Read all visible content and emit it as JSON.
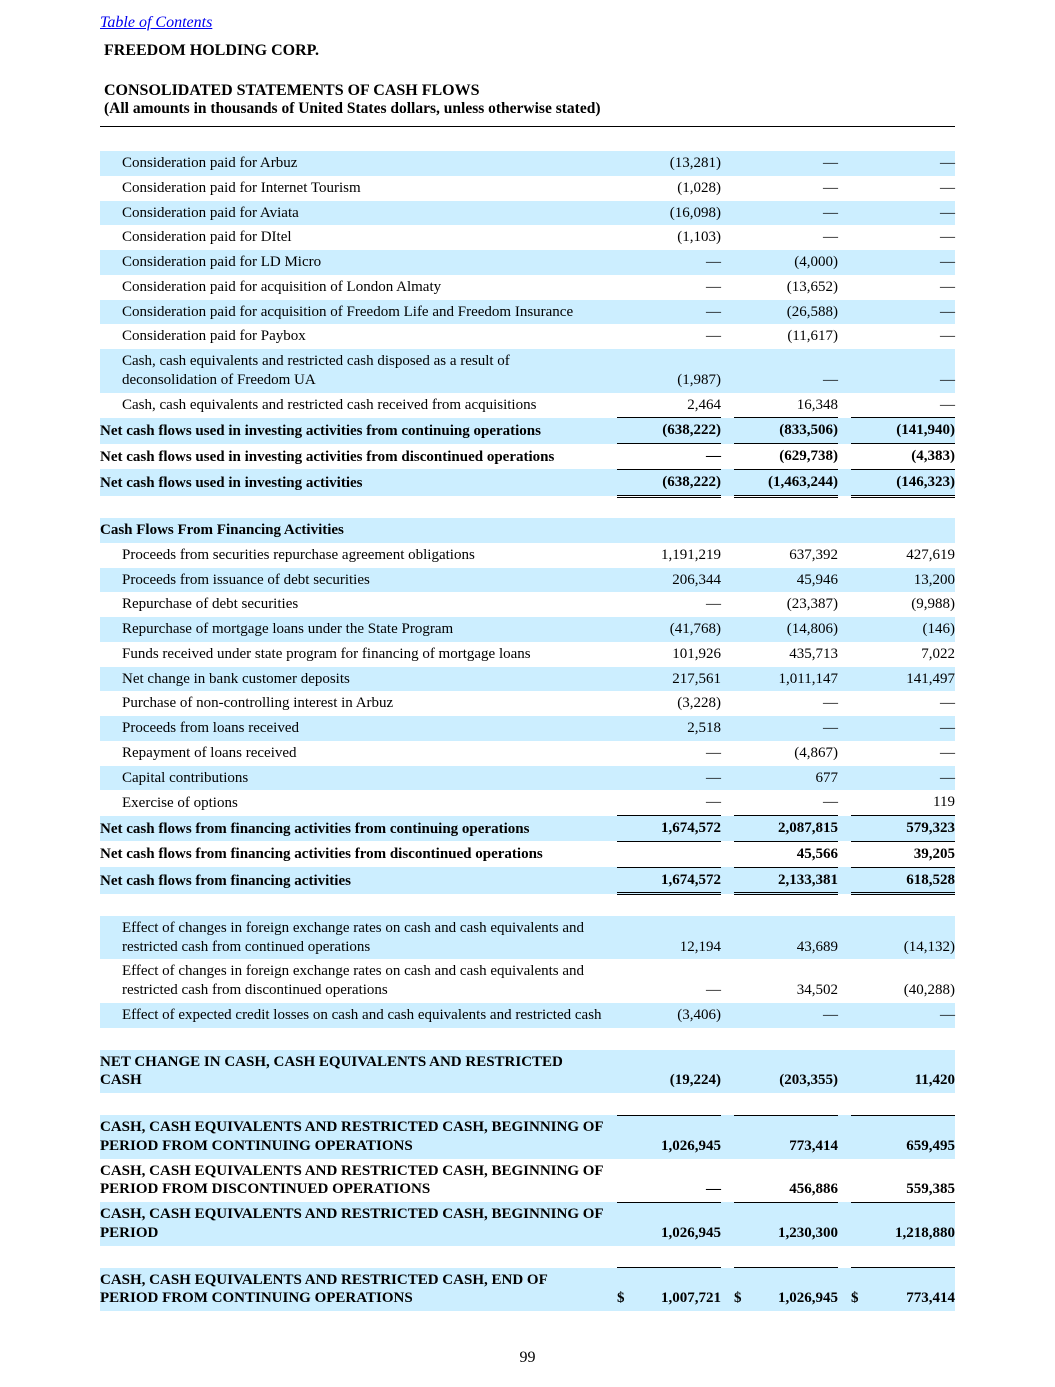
{
  "page": {
    "toc_link": "Table of Contents",
    "company": "FREEDOM HOLDING CORP.",
    "title": "CONSOLIDATED STATEMENTS OF CASH FLOWS",
    "subtitle": "(All amounts in thousands of United States dollars, unless otherwise stated)",
    "page_number": "99"
  },
  "colors": {
    "row_shade": "#cceeff",
    "link_blue": "#0000ee",
    "text": "#000000"
  },
  "table": {
    "rows": [
      {
        "type": "item",
        "label": "Consideration paid for Arbuz",
        "values": [
          "(13,281)",
          "—",
          "—"
        ],
        "shaded": true
      },
      {
        "type": "item",
        "label": "Consideration paid for Internet Tourism",
        "values": [
          "(1,028)",
          "—",
          "—"
        ],
        "shaded": false
      },
      {
        "type": "item",
        "label": "Consideration paid for Aviata",
        "values": [
          "(16,098)",
          "—",
          "—"
        ],
        "shaded": true
      },
      {
        "type": "item",
        "label": "Consideration paid for DItel",
        "values": [
          "(1,103)",
          "—",
          "—"
        ],
        "shaded": false
      },
      {
        "type": "item",
        "label": "Consideration paid for LD Micro",
        "values": [
          "—",
          "(4,000)",
          "—"
        ],
        "shaded": true
      },
      {
        "type": "item",
        "label": "Consideration paid for acquisition of London Almaty",
        "values": [
          "—",
          "(13,652)",
          "—"
        ],
        "shaded": false
      },
      {
        "type": "item",
        "label": "Consideration paid for acquisition of Freedom Life and Freedom Insurance",
        "values": [
          "—",
          "(26,588)",
          "—"
        ],
        "shaded": true
      },
      {
        "type": "item",
        "label": "Consideration paid for Paybox",
        "values": [
          "—",
          "(11,617)",
          "—"
        ],
        "shaded": false
      },
      {
        "type": "item",
        "label": "Cash, cash equivalents and restricted cash disposed as a result of deconsolidation of Freedom UA",
        "values": [
          "(1,987)",
          "—",
          "—"
        ],
        "shaded": true
      },
      {
        "type": "item",
        "label": "Cash, cash equivalents and restricted cash received from acquisitions",
        "values": [
          "2,464",
          "16,348",
          "—"
        ],
        "shaded": false
      },
      {
        "type": "total",
        "label": "Net cash flows used in investing activities from continuing operations",
        "values": [
          "(638,222)",
          "(833,506)",
          "(141,940)"
        ],
        "shaded": true,
        "top_border": true
      },
      {
        "type": "total",
        "label": "Net cash flows used in investing activities from discontinued operations",
        "values": [
          "—",
          "(629,738)",
          "(4,383)"
        ],
        "shaded": false,
        "top_border": true
      },
      {
        "type": "total",
        "label": "Net cash flows used in investing activities",
        "values": [
          "(638,222)",
          "(1,463,244)",
          "(146,323)"
        ],
        "shaded": true,
        "top_border": true,
        "double_bottom": true
      },
      {
        "type": "spacer"
      },
      {
        "type": "section",
        "label": "Cash Flows From Financing Activities",
        "values": [
          "",
          "",
          ""
        ],
        "shaded": true
      },
      {
        "type": "item",
        "label": "Proceeds from securities repurchase agreement obligations",
        "values": [
          "1,191,219",
          "637,392",
          "427,619"
        ],
        "shaded": false
      },
      {
        "type": "item",
        "label": "Proceeds from issuance of debt securities",
        "values": [
          "206,344",
          "45,946",
          "13,200"
        ],
        "shaded": true
      },
      {
        "type": "item",
        "label": "Repurchase of debt securities",
        "values": [
          "—",
          "(23,387)",
          "(9,988)"
        ],
        "shaded": false
      },
      {
        "type": "item",
        "label": "Repurchase of mortgage loans under the State Program",
        "values": [
          "(41,768)",
          "(14,806)",
          "(146)"
        ],
        "shaded": true
      },
      {
        "type": "item",
        "label": "Funds received under state program for financing of mortgage loans",
        "values": [
          "101,926",
          "435,713",
          "7,022"
        ],
        "shaded": false
      },
      {
        "type": "item",
        "label": "Net change in bank customer deposits",
        "values": [
          "217,561",
          "1,011,147",
          "141,497"
        ],
        "shaded": true
      },
      {
        "type": "item",
        "label": "Purchase of non-controlling interest in Arbuz",
        "values": [
          "(3,228)",
          "—",
          "—"
        ],
        "shaded": false
      },
      {
        "type": "item",
        "label": "Proceeds from loans received",
        "values": [
          "2,518",
          "—",
          "—"
        ],
        "shaded": true
      },
      {
        "type": "item",
        "label": "Repayment of loans received",
        "values": [
          "—",
          "(4,867)",
          "—"
        ],
        "shaded": false
      },
      {
        "type": "item",
        "label": "Capital contributions",
        "values": [
          "—",
          "677",
          "—"
        ],
        "shaded": true
      },
      {
        "type": "item",
        "label": "Exercise of options",
        "values": [
          "—",
          "—",
          "119"
        ],
        "shaded": false
      },
      {
        "type": "total",
        "label": "Net cash flows from financing activities from continuing operations",
        "values": [
          "1,674,572",
          "2,087,815",
          "579,323"
        ],
        "shaded": true,
        "top_border": true
      },
      {
        "type": "total",
        "label": "Net cash flows from financing activities from discontinued operations",
        "values": [
          "",
          "45,566",
          "39,205"
        ],
        "shaded": false,
        "top_border": true
      },
      {
        "type": "total",
        "label": "Net cash flows from financing activities",
        "values": [
          "1,674,572",
          "2,133,381",
          "618,528"
        ],
        "shaded": true,
        "top_border": true,
        "double_bottom": true
      },
      {
        "type": "spacer"
      },
      {
        "type": "item",
        "label": "Effect of changes in foreign exchange rates on cash and cash equivalents and restricted cash from continued operations",
        "values": [
          "12,194",
          "43,689",
          "(14,132)"
        ],
        "shaded": true
      },
      {
        "type": "item",
        "label": "Effect of changes in foreign exchange rates on cash and cash equivalents and restricted cash from discontinued operations",
        "values": [
          "—",
          "34,502",
          "(40,288)"
        ],
        "shaded": false
      },
      {
        "type": "item",
        "label": "Effect of expected credit losses on cash and cash equivalents and restricted cash",
        "values": [
          "(3,406)",
          "—",
          "—"
        ],
        "shaded": true
      },
      {
        "type": "spacer"
      },
      {
        "type": "total",
        "label": "NET CHANGE IN CASH, CASH EQUIVALENTS AND RESTRICTED CASH",
        "values": [
          "(19,224)",
          "(203,355)",
          "11,420"
        ],
        "shaded": true
      },
      {
        "type": "spacer",
        "line_bottom": true
      },
      {
        "type": "total",
        "label": "CASH, CASH EQUIVALENTS AND RESTRICTED CASH, BEGINNING OF PERIOD FROM CONTINUING OPERATIONS",
        "values": [
          "1,026,945",
          "773,414",
          "659,495"
        ],
        "shaded": true
      },
      {
        "type": "total",
        "label": "CASH, CASH EQUIVALENTS AND RESTRICTED CASH, BEGINNING OF PERIOD FROM DISCONTINUED OPERATIONS",
        "values": [
          "—",
          "456,886",
          "559,385"
        ],
        "shaded": false
      },
      {
        "type": "total",
        "label": "CASH, CASH EQUIVALENTS AND RESTRICTED CASH, BEGINNING OF PERIOD",
        "values": [
          "1,026,945",
          "1,230,300",
          "1,218,880"
        ],
        "shaded": true,
        "top_border": true
      },
      {
        "type": "spacer",
        "line_bottom": true
      },
      {
        "type": "total",
        "label": "CASH, CASH EQUIVALENTS AND RESTRICTED CASH, END OF PERIOD FROM CONTINUING OPERATIONS",
        "values": [
          "1,007,721",
          "1,026,945",
          "773,414"
        ],
        "shaded": true,
        "dollar": true
      }
    ]
  }
}
